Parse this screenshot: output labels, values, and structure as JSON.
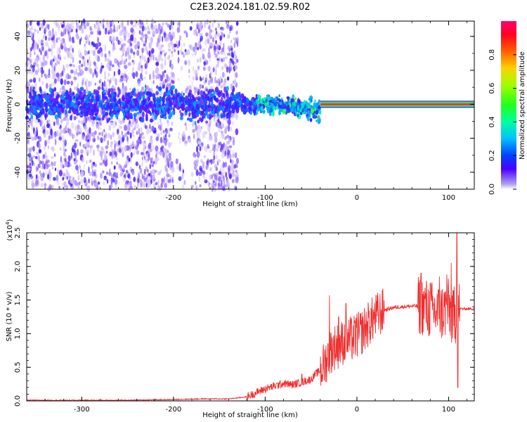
{
  "title": "C2E3.2024.181.02.59.R02",
  "colorbar": {
    "label": "Normalized spectral amplitude",
    "ticks": [
      0.0,
      0.2,
      0.4,
      0.6,
      0.8
    ],
    "range": [
      0,
      1
    ]
  },
  "chart_data": [
    {
      "type": "heatmap",
      "name": "spectrogram",
      "xlabel": "Height of straight line (km)",
      "ylabel": "Frequency (Hz)",
      "xlim": [
        -360,
        128
      ],
      "ylim": [
        -50,
        49
      ],
      "xticks": [
        -300,
        -200,
        -100,
        0,
        100
      ],
      "yticks": [
        -40,
        -20,
        0,
        20,
        40
      ],
      "features": {
        "noise_region_x": [
          -360,
          -130
        ],
        "transition_x": [
          -130,
          -40
        ],
        "coherent_line_x": [
          -40,
          128
        ],
        "coherent_line_freq": 0,
        "secondary_band_x": [
          -200,
          -175
        ]
      }
    },
    {
      "type": "line",
      "name": "snr",
      "xlabel": "Height of straight line (km)",
      "ylabel": "SNR (10 * v/v)",
      "scale_label": "(x10^4)",
      "xlim": [
        -360,
        128
      ],
      "ylim": [
        0,
        2.5
      ],
      "xticks": [
        -300,
        -200,
        -100,
        0,
        100
      ],
      "yticks": [
        0.0,
        0.5,
        1.0,
        1.5,
        2.0,
        2.5
      ],
      "ytick_labels": [
        "0.0",
        "0.5",
        "1.0",
        "1.5",
        "2.0",
        "2.5"
      ],
      "envelope": [
        [
          -360,
          0.01
        ],
        [
          -300,
          0.01
        ],
        [
          -250,
          0.01
        ],
        [
          -200,
          0.02
        ],
        [
          -170,
          0.03
        ],
        [
          -140,
          0.03
        ],
        [
          -120,
          0.06
        ],
        [
          -110,
          0.12
        ],
        [
          -100,
          0.18
        ],
        [
          -90,
          0.22
        ],
        [
          -80,
          0.26
        ],
        [
          -70,
          0.24
        ],
        [
          -60,
          0.28
        ],
        [
          -50,
          0.32
        ],
        [
          -45,
          0.4
        ],
        [
          -40,
          0.45
        ],
        [
          -35,
          0.55
        ],
        [
          -30,
          0.72
        ],
        [
          -25,
          0.8
        ],
        [
          -20,
          0.82
        ],
        [
          -15,
          0.88
        ],
        [
          -10,
          0.9
        ],
        [
          -5,
          0.92
        ],
        [
          0,
          0.96
        ],
        [
          5,
          1.02
        ],
        [
          10,
          1.1
        ],
        [
          15,
          1.18
        ],
        [
          20,
          1.25
        ],
        [
          25,
          1.3
        ],
        [
          30,
          1.35
        ],
        [
          40,
          1.39
        ],
        [
          50,
          1.4
        ],
        [
          60,
          1.41
        ],
        [
          66,
          1.41
        ],
        [
          70,
          1.42
        ],
        [
          80,
          1.35
        ],
        [
          90,
          1.3
        ],
        [
          100,
          1.38
        ],
        [
          105,
          1.2
        ],
        [
          110,
          1.37
        ],
        [
          115,
          1.37
        ],
        [
          128,
          1.37
        ]
      ],
      "spikes": [
        [
          -60,
          0.4
        ],
        [
          -30,
          1.57
        ],
        [
          -20,
          1.25
        ],
        [
          -12,
          1.45
        ],
        [
          0,
          1.3
        ],
        [
          5,
          1.2
        ],
        [
          70,
          1.9
        ],
        [
          75,
          1.6
        ],
        [
          80,
          1.75
        ],
        [
          90,
          1.85
        ],
        [
          98,
          1.88
        ],
        [
          103,
          2.05
        ],
        [
          106,
          1.7
        ],
        [
          109,
          2.55
        ],
        [
          110,
          0.2
        ]
      ],
      "color": "#ef2f2f"
    }
  ]
}
